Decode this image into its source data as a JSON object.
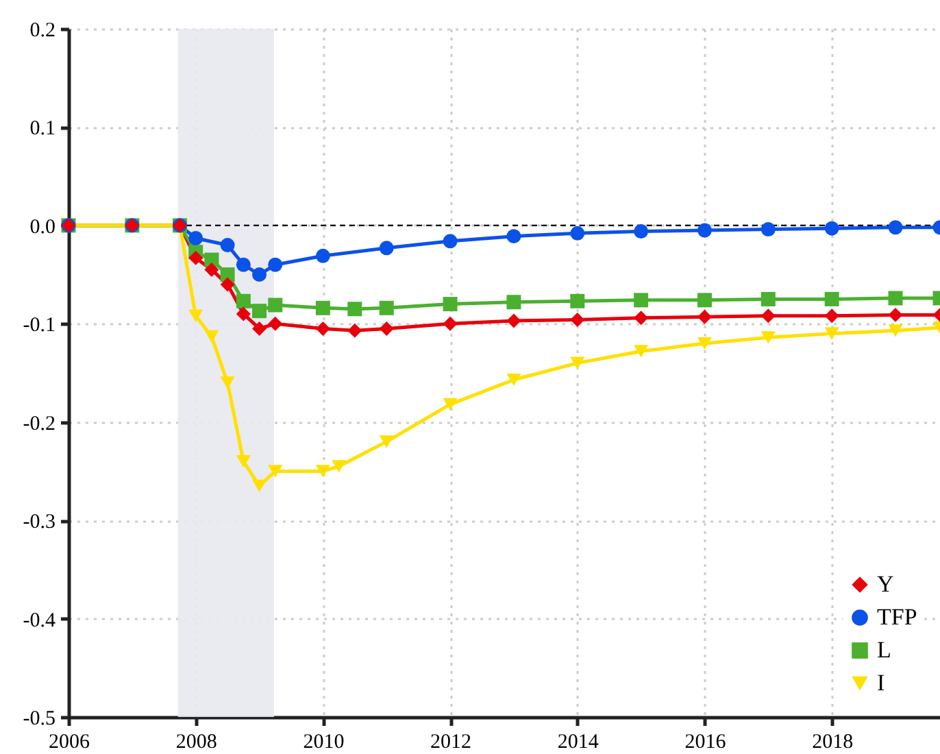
{
  "chart_data": {
    "type": "line",
    "xlim": [
      2006,
      2019.7
    ],
    "xticks": [
      2006,
      2008,
      2010,
      2012,
      2014,
      2016,
      2018
    ],
    "ylim": [
      -0.5,
      0.2
    ],
    "yticks": [
      {
        "value": -0.5,
        "label": "-0.5"
      },
      {
        "value": -0.4,
        "label": "-0.4"
      },
      {
        "value": -0.3,
        "label": "-0.3"
      },
      {
        "value": -0.2,
        "label": "-0.2"
      },
      {
        "value": -0.1,
        "label": "-0.1"
      },
      {
        "value": 0,
        "label": "0.0"
      },
      {
        "value": 0.1,
        "label": "0.1"
      },
      {
        "value": 0.2,
        "label": "0.2"
      }
    ],
    "grid": true,
    "legend": "bottom right",
    "line_style": "solid",
    "ref_lines": [
      {
        "axis": "y",
        "value": 0,
        "color": "#000000",
        "line_style": "dashed"
      }
    ],
    "bands": [
      {
        "axis": "x",
        "from": 2007.72,
        "to": 2009.23,
        "color": "#e8e8f0"
      }
    ],
    "series": [
      {
        "name": "Y",
        "color": "#e8000b",
        "marker": "diamond",
        "x": [
          2006,
          2007,
          2007.75,
          2008,
          2008.25,
          2008.5,
          2008.75,
          2009,
          2009.25,
          2010,
          2010.5,
          2011,
          2012,
          2013,
          2014,
          2015,
          2016,
          2017,
          2018,
          2019,
          2019.7
        ],
        "values": [
          0,
          0,
          0,
          -0.033,
          -0.045,
          -0.06,
          -0.09,
          -0.105,
          -0.1,
          -0.105,
          -0.107,
          -0.105,
          -0.1,
          -0.097,
          -0.096,
          -0.094,
          -0.093,
          -0.092,
          -0.092,
          -0.091,
          -0.091
        ]
      },
      {
        "name": "TFP",
        "color": "#0b52e8",
        "marker": "circle",
        "x": [
          2006,
          2007,
          2007.75,
          2008,
          2008.5,
          2008.75,
          2009,
          2009.25,
          2010,
          2011,
          2012,
          2013,
          2014,
          2015,
          2016,
          2017,
          2018,
          2019,
          2019.7
        ],
        "values": [
          0,
          0,
          0,
          -0.013,
          -0.02,
          -0.04,
          -0.05,
          -0.04,
          -0.031,
          -0.023,
          -0.016,
          -0.011,
          -0.008,
          -0.006,
          -0.005,
          -0.004,
          -0.003,
          -0.002,
          -0.002
        ]
      },
      {
        "name": "L",
        "color": "#4bb030",
        "marker": "square",
        "x": [
          2006,
          2007,
          2007.75,
          2008,
          2008.25,
          2008.5,
          2008.75,
          2009,
          2009.25,
          2010,
          2010.5,
          2011,
          2012,
          2013,
          2014,
          2015,
          2016,
          2017,
          2018,
          2019,
          2019.7
        ],
        "values": [
          0,
          0,
          0,
          -0.027,
          -0.035,
          -0.05,
          -0.077,
          -0.087,
          -0.081,
          -0.084,
          -0.085,
          -0.084,
          -0.08,
          -0.078,
          -0.077,
          -0.076,
          -0.076,
          -0.075,
          -0.075,
          -0.074,
          -0.074
        ]
      },
      {
        "name": "I",
        "color": "#ffe000",
        "marker": "triangle",
        "x": [
          2006,
          2007,
          2007.75,
          2008,
          2008.25,
          2008.5,
          2008.75,
          2009,
          2009.25,
          2010,
          2010.25,
          2011,
          2012,
          2013,
          2014,
          2015,
          2016,
          2017,
          2018,
          2019,
          2019.7
        ],
        "values": [
          0,
          0,
          0,
          -0.092,
          -0.113,
          -0.16,
          -0.24,
          -0.265,
          -0.25,
          -0.25,
          -0.245,
          -0.22,
          -0.182,
          -0.157,
          -0.14,
          -0.128,
          -0.12,
          -0.114,
          -0.11,
          -0.107,
          -0.104
        ]
      }
    ]
  }
}
